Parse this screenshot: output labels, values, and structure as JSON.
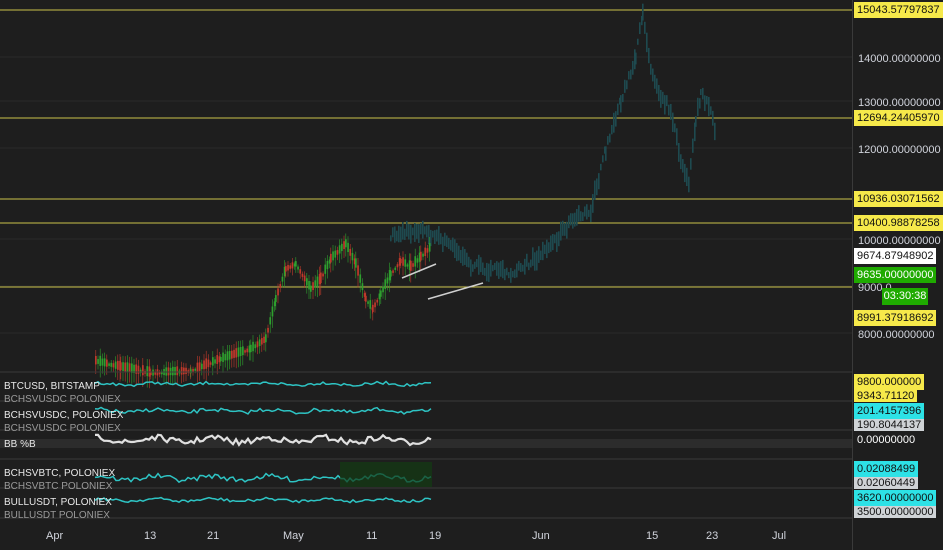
{
  "colors": {
    "background": "#1e1e1e",
    "horizontal_line": "#c9c24a",
    "price_label_bg": "#f6e94a",
    "current_price_bg": "#1faa00",
    "last_price_bg": "#ffffff",
    "teal": "#2ec4c4",
    "candle_up": "#2ea02e",
    "candle_down": "#c0392b",
    "ghost_candle": "#1e4a4f"
  },
  "price_axis": {
    "tick_labels": [
      "14000.00000000",
      "13000.00000000",
      "12000.00000000",
      "10000.00000000",
      "9000.0",
      "8000.00000000"
    ],
    "level_labels": [
      "15043.57797837",
      "12694.24405970",
      "10936.03071562",
      "10400.98878258",
      "8991.37918692"
    ],
    "last_price": "9674.87948902",
    "current_price": "9635.00000000",
    "countdown": "03:30:38"
  },
  "date_axis": [
    "Apr",
    "13",
    "21",
    "May",
    "11",
    "19",
    "Jun",
    "15",
    "23",
    "Jul"
  ],
  "subpanes": [
    {
      "title": "BTCUSD, BITSTAMP",
      "ghost": "BCHSVUSDC POLONIEX",
      "value": "9800.000000",
      "value2": "9343.71120",
      "value_bg": "#f6e94a"
    },
    {
      "title": "BCHSVUSDC, POLONIEX",
      "ghost": "BCHSVUSDC POLONIEX",
      "value": "201.4157396",
      "value2": "190.8044137",
      "value_bg": "#2de2e6"
    },
    {
      "title": "BB %B",
      "ghost": "",
      "value": "0.00000000",
      "value2": "",
      "value_bg": "#1e1e1e"
    },
    {
      "title": "BCHSVBTC, POLONIEX",
      "ghost": "BCHSVBTC POLONIEX",
      "value": "0.02088499",
      "value2": "0.02060449",
      "value_bg": "#2de2e6"
    },
    {
      "title": "BULLUSDT, POLONIEX",
      "ghost": "BULLUSDT POLONIEX",
      "value": "3620.00000000",
      "value2": "3500.00000000",
      "value_bg": "#2de2e6"
    }
  ]
}
